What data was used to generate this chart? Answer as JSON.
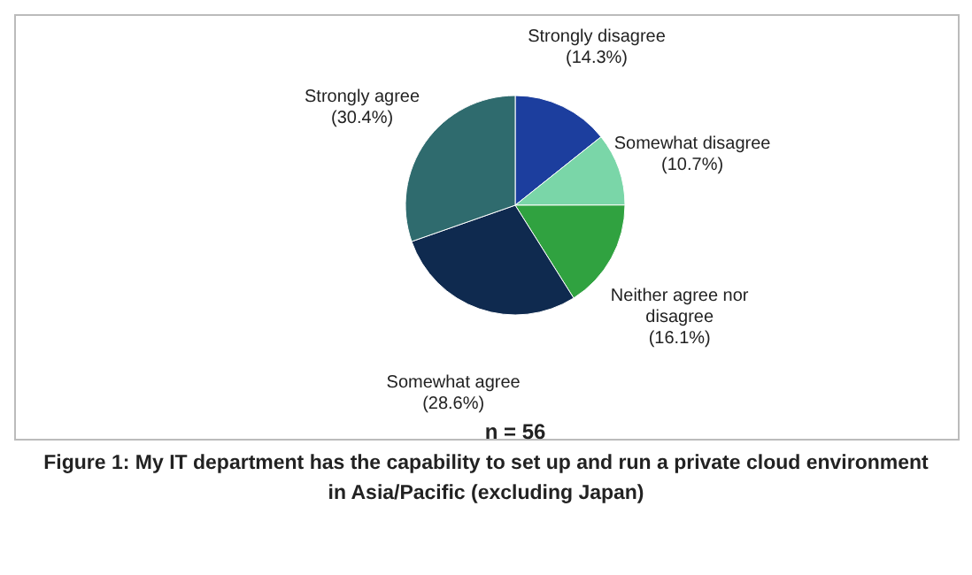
{
  "chart_data": {
    "type": "pie",
    "title": "Figure 1: My IT department has the capability to set up and run a private cloud environment in Asia/Pacific (excluding Japan)",
    "categories": [
      "Strongly disagree",
      "Somewhat disagree",
      "Neither agree nor disagree",
      "Somewhat agree",
      "Strongly agree"
    ],
    "values": [
      14.3,
      10.7,
      16.1,
      28.6,
      30.4
    ],
    "value_labels": [
      "(14.3%)",
      "(10.7%)",
      "(16.1%)",
      "(28.6%)",
      "(30.4%)"
    ],
    "colors": [
      "#1c3e9e",
      "#7ad6a8",
      "#30a240",
      "#0f2a4f",
      "#2f6b6e"
    ],
    "annotations": [
      "n = 56"
    ]
  }
}
